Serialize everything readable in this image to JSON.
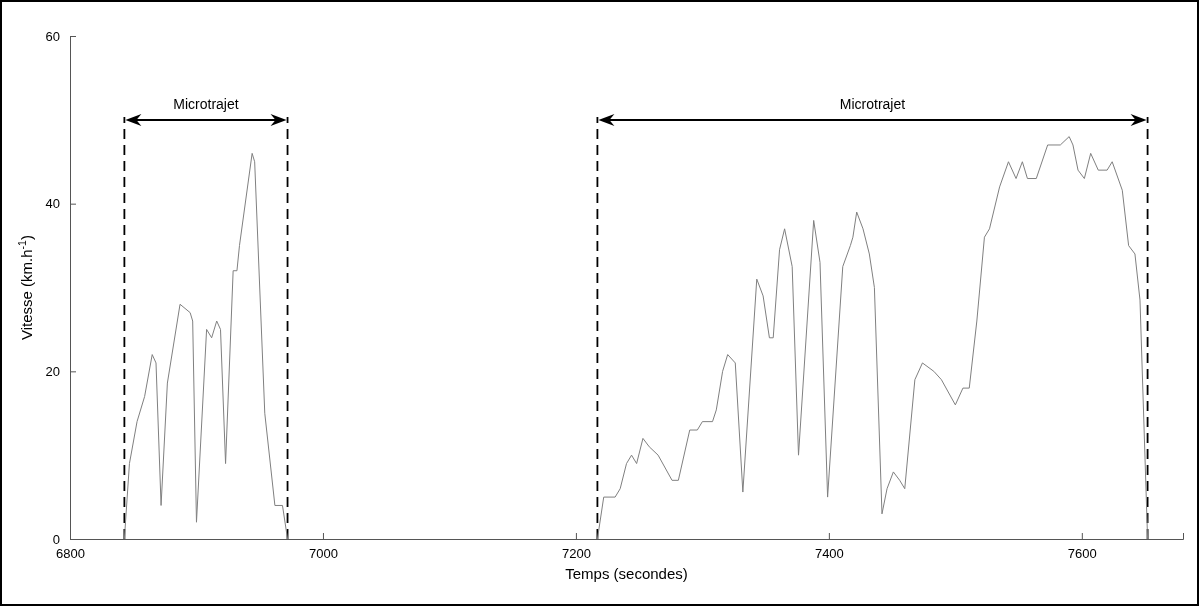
{
  "chart_data": {
    "type": "line",
    "xlabel": "Temps (secondes)",
    "ylabel": "Vitesse (km.h$^{-1}$)",
    "xlim": [
      6800,
      7680
    ],
    "ylim": [
      0,
      60
    ],
    "xticks": [
      6800,
      7000,
      7200,
      7400,
      7600
    ],
    "yticks": [
      0,
      20,
      40,
      60
    ],
    "grid": false,
    "marker": "none",
    "line_style": "solid",
    "series": [
      {
        "color": "#808080",
        "x": [
          6843,
          6847,
          6853,
          6859,
          6865,
          6868,
          6872,
          6877,
          6887,
          6895,
          6897,
          6900,
          6908,
          6912,
          6916,
          6919,
          6923,
          6929,
          6932,
          6934,
          6944,
          6946,
          6954,
          6962,
          6968,
          6972,
          7100,
          7217,
          7222,
          7231,
          7235,
          7240,
          7244,
          7248,
          7253,
          7258,
          7265,
          7276,
          7281,
          7290,
          7296,
          7300,
          7308,
          7311,
          7316,
          7320,
          7326,
          7332,
          7343,
          7348,
          7353,
          7356,
          7361,
          7365,
          7371,
          7376,
          7388,
          7393,
          7399,
          7411,
          7417,
          7419,
          7422,
          7427,
          7432,
          7436,
          7442,
          7446,
          7451,
          7456,
          7460,
          7468,
          7474,
          7483,
          7489,
          7500,
          7506,
          7511,
          7517,
          7523,
          7527,
          7535,
          7542,
          7548,
          7553,
          7557,
          7564,
          7573,
          7583,
          7590,
          7593,
          7597,
          7602,
          7607,
          7613,
          7620,
          7624,
          7632,
          7637,
          7642,
          7646,
          7652
        ],
        "values": [
          0,
          9,
          14,
          17,
          22,
          21,
          4,
          18.6,
          28,
          27,
          26,
          2,
          25,
          24,
          26,
          25,
          9,
          32,
          32,
          35,
          46,
          45,
          15,
          4,
          4,
          0,
          null,
          0,
          5,
          5,
          6,
          9,
          10,
          9,
          12,
          11,
          10,
          7,
          7,
          13,
          13,
          14,
          14,
          15.4,
          20,
          22,
          21,
          5.6,
          31,
          29,
          24,
          24,
          34.5,
          37,
          32.5,
          10,
          38,
          33,
          5,
          32.5,
          35,
          36,
          39,
          37,
          34,
          30,
          3,
          6,
          8,
          7,
          6,
          19,
          21,
          20,
          19,
          16,
          18,
          18,
          26,
          36,
          37,
          42,
          45,
          43,
          45,
          43,
          43,
          47,
          47,
          48,
          47,
          44,
          43,
          46,
          44,
          44,
          45,
          41.6,
          35,
          34,
          28.5,
          0
        ]
      }
    ],
    "ref_lines": [
      {
        "axis": "x",
        "value": 6843,
        "color": "#000000",
        "line_style": "dashed"
      },
      {
        "axis": "x",
        "value": 6972,
        "color": "#000000",
        "line_style": "dashed"
      },
      {
        "axis": "x",
        "value": 7217,
        "color": "#000000",
        "line_style": "dashed"
      },
      {
        "axis": "x",
        "value": 7652,
        "color": "#000000",
        "line_style": "dashed"
      }
    ],
    "annotations": [
      "Microtrajet",
      "Microtrajet"
    ]
  }
}
